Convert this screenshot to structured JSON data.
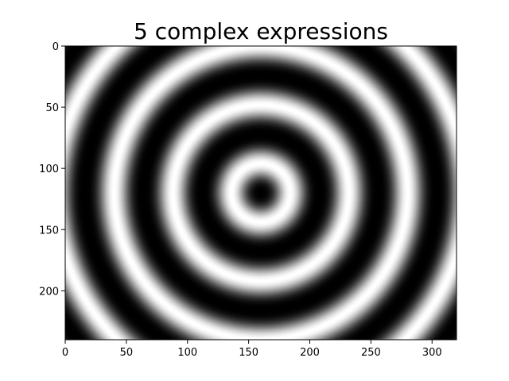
{
  "chart_data": {
    "type": "heatmap",
    "title": "5 complex expressions",
    "xlabel": "",
    "ylabel": "",
    "image_width": 320,
    "image_height": 240,
    "xlim": [
      0,
      320
    ],
    "ylim": [
      240,
      0
    ],
    "x_ticks": [
      0,
      50,
      100,
      150,
      200,
      250,
      300
    ],
    "y_ticks": [
      0,
      50,
      100,
      150,
      200
    ],
    "colormap": "gray",
    "pattern": "concentric-rings",
    "ring_center": [
      160,
      120
    ],
    "ring_period": 48,
    "rings_visible": 5,
    "grid": false,
    "colors": {
      "ring_light": "#ffffff",
      "ring_dark": "#000000",
      "axes_frame": "#000000"
    }
  }
}
